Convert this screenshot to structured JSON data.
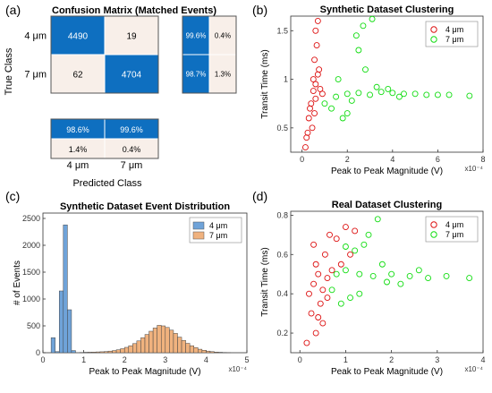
{
  "panel_labels": {
    "a": "(a)",
    "b": "(b)",
    "c": "(c)",
    "d": "(d)"
  },
  "colors": {
    "matrix_blue": "#0e6fc0",
    "matrix_light": "#f8efe9",
    "hist_blue": "#6fa3d9",
    "hist_orange": "#f0b27e",
    "scatter_red": "#dd1111",
    "scatter_green": "#11dd11"
  },
  "chart_data": [
    {
      "type": "table",
      "title": "Confusion Matrix (Matched Events)",
      "xlabel": "Predicted Class",
      "ylabel": "True Class",
      "row_labels": [
        "4 μm",
        "7 μm"
      ],
      "col_labels": [
        "4 μm",
        "7 μm"
      ],
      "matrix": [
        [
          4490,
          19
        ],
        [
          62,
          4704
        ]
      ],
      "row_summary": [
        [
          "99.6%",
          "0.4%"
        ],
        [
          "98.7%",
          "1.3%"
        ]
      ],
      "col_summary": [
        [
          "98.6%",
          "99.6%"
        ],
        [
          "1.4%",
          "0.4%"
        ]
      ]
    },
    {
      "type": "scatter",
      "title": "Synthetic Dataset Clustering",
      "xlabel": "Peak to Peak Magnitude (V)",
      "ylabel": "Transit Time (ms)",
      "x_exponent": "x10⁻⁴",
      "xlim": [
        -0.5,
        8
      ],
      "ylim": [
        0.25,
        1.65
      ],
      "xticks": [
        0,
        2,
        4,
        6,
        8
      ],
      "yticks": [
        0.5,
        1,
        1.5
      ],
      "legend": "top-right",
      "series": [
        {
          "name": "4 μm",
          "color": "#dd1111",
          "points": [
            [
              0.5,
              0.88
            ],
            [
              0.6,
              0.95
            ],
            [
              0.4,
              0.75
            ],
            [
              0.7,
              1.05
            ],
            [
              0.3,
              0.6
            ],
            [
              0.55,
              1.2
            ],
            [
              0.65,
              1.35
            ],
            [
              0.6,
              1.5
            ],
            [
              0.7,
              1.6
            ],
            [
              0.45,
              0.5
            ],
            [
              0.2,
              0.4
            ],
            [
              0.8,
              0.9
            ],
            [
              0.9,
              0.85
            ],
            [
              0.35,
              0.7
            ],
            [
              0.6,
              0.8
            ],
            [
              0.5,
              1.0
            ],
            [
              0.75,
              1.1
            ],
            [
              0.25,
              0.45
            ],
            [
              0.15,
              0.3
            ],
            [
              0.55,
              0.65
            ]
          ]
        },
        {
          "name": "7 μm",
          "color": "#11dd11",
          "points": [
            [
              1.5,
              0.82
            ],
            [
              2.0,
              0.85
            ],
            [
              2.5,
              0.86
            ],
            [
              3.0,
              0.84
            ],
            [
              3.5,
              0.87
            ],
            [
              4.0,
              0.86
            ],
            [
              4.5,
              0.85
            ],
            [
              5.0,
              0.85
            ],
            [
              5.5,
              0.84
            ],
            [
              6.0,
              0.84
            ],
            [
              6.5,
              0.84
            ],
            [
              7.4,
              0.83
            ],
            [
              2.7,
              1.55
            ],
            [
              3.1,
              1.62
            ],
            [
              2.5,
              1.3
            ],
            [
              2.8,
              1.1
            ],
            [
              1.0,
              0.75
            ],
            [
              1.3,
              0.7
            ],
            [
              2.2,
              0.78
            ],
            [
              3.3,
              0.92
            ],
            [
              3.8,
              0.9
            ],
            [
              4.3,
              0.82
            ],
            [
              2.0,
              0.65
            ],
            [
              1.8,
              0.6
            ],
            [
              1.6,
              1.0
            ],
            [
              2.4,
              1.45
            ]
          ]
        }
      ]
    },
    {
      "type": "bar",
      "title": "Synthetic Dataset Event Distribution",
      "xlabel": "Peak to Peak Magnitude (V)",
      "ylabel": "# of Events",
      "x_exponent": "x10⁻⁴",
      "xlim": [
        0,
        5
      ],
      "ylim": [
        0,
        2600
      ],
      "xticks": [
        0,
        1,
        2,
        3,
        4,
        5
      ],
      "yticks": [
        0,
        500,
        1000,
        1500,
        2000,
        2500
      ],
      "legend": "top-right",
      "bin_width": 0.1,
      "series": [
        {
          "name": "4 μm",
          "color": "#6fa3d9",
          "bins": [
            [
              0.25,
              280
            ],
            [
              0.35,
              20
            ],
            [
              0.45,
              1150
            ],
            [
              0.55,
              2380
            ],
            [
              0.65,
              800
            ],
            [
              0.75,
              40
            ]
          ]
        },
        {
          "name": "7 μm",
          "color": "#f0b27e",
          "bins": [
            [
              0.95,
              5
            ],
            [
              1.05,
              8
            ],
            [
              1.15,
              10
            ],
            [
              1.25,
              12
            ],
            [
              1.35,
              15
            ],
            [
              1.45,
              18
            ],
            [
              1.55,
              22
            ],
            [
              1.65,
              30
            ],
            [
              1.75,
              40
            ],
            [
              1.85,
              55
            ],
            [
              1.95,
              75
            ],
            [
              2.05,
              100
            ],
            [
              2.15,
              130
            ],
            [
              2.25,
              170
            ],
            [
              2.35,
              220
            ],
            [
              2.45,
              280
            ],
            [
              2.55,
              340
            ],
            [
              2.65,
              400
            ],
            [
              2.75,
              460
            ],
            [
              2.85,
              510
            ],
            [
              2.95,
              500
            ],
            [
              3.05,
              470
            ],
            [
              3.15,
              420
            ],
            [
              3.25,
              360
            ],
            [
              3.35,
              290
            ],
            [
              3.45,
              230
            ],
            [
              3.55,
              175
            ],
            [
              3.65,
              130
            ],
            [
              3.75,
              95
            ],
            [
              3.85,
              65
            ],
            [
              3.95,
              45
            ],
            [
              4.05,
              30
            ],
            [
              4.15,
              20
            ],
            [
              4.25,
              12
            ],
            [
              4.35,
              8
            ],
            [
              4.45,
              5
            ],
            [
              4.55,
              3
            ]
          ]
        }
      ]
    },
    {
      "type": "scatter",
      "title": "Real Dataset Clustering",
      "xlabel": "Peak to Peak Magnitude (V)",
      "ylabel": "Transit Time (ms)",
      "x_exponent": "x10⁻⁴",
      "xlim": [
        -0.2,
        4
      ],
      "ylim": [
        0.1,
        0.82
      ],
      "xticks": [
        0,
        1,
        2,
        3,
        4
      ],
      "yticks": [
        0.2,
        0.4,
        0.6,
        0.8
      ],
      "legend": "top-right",
      "series": [
        {
          "name": "4 μm",
          "color": "#dd1111",
          "points": [
            [
              0.3,
              0.45
            ],
            [
              0.4,
              0.5
            ],
            [
              0.5,
              0.42
            ],
            [
              0.35,
              0.55
            ],
            [
              0.45,
              0.35
            ],
            [
              0.25,
              0.3
            ],
            [
              0.55,
              0.6
            ],
            [
              0.6,
              0.48
            ],
            [
              0.3,
              0.65
            ],
            [
              0.5,
              0.25
            ],
            [
              0.15,
              0.15
            ],
            [
              0.65,
              0.7
            ],
            [
              0.8,
              0.68
            ],
            [
              1.0,
              0.74
            ],
            [
              1.2,
              0.72
            ],
            [
              1.1,
              0.6
            ],
            [
              0.2,
              0.4
            ],
            [
              0.4,
              0.28
            ],
            [
              0.6,
              0.38
            ],
            [
              0.7,
              0.52
            ],
            [
              0.35,
              0.2
            ],
            [
              0.9,
              0.55
            ]
          ]
        },
        {
          "name": "7 μm",
          "color": "#11dd11",
          "points": [
            [
              0.8,
              0.5
            ],
            [
              1.0,
              0.52
            ],
            [
              1.3,
              0.5
            ],
            [
              1.6,
              0.49
            ],
            [
              2.0,
              0.5
            ],
            [
              2.4,
              0.49
            ],
            [
              2.8,
              0.48
            ],
            [
              3.2,
              0.49
            ],
            [
              3.7,
              0.48
            ],
            [
              1.2,
              0.62
            ],
            [
              1.5,
              0.7
            ],
            [
              1.7,
              0.78
            ],
            [
              1.4,
              0.65
            ],
            [
              0.9,
              0.35
            ],
            [
              1.1,
              0.38
            ],
            [
              1.8,
              0.55
            ],
            [
              2.2,
              0.45
            ],
            [
              1.0,
              0.64
            ],
            [
              0.7,
              0.42
            ],
            [
              1.9,
              0.46
            ],
            [
              2.6,
              0.52
            ],
            [
              1.3,
              0.4
            ]
          ]
        }
      ]
    }
  ]
}
